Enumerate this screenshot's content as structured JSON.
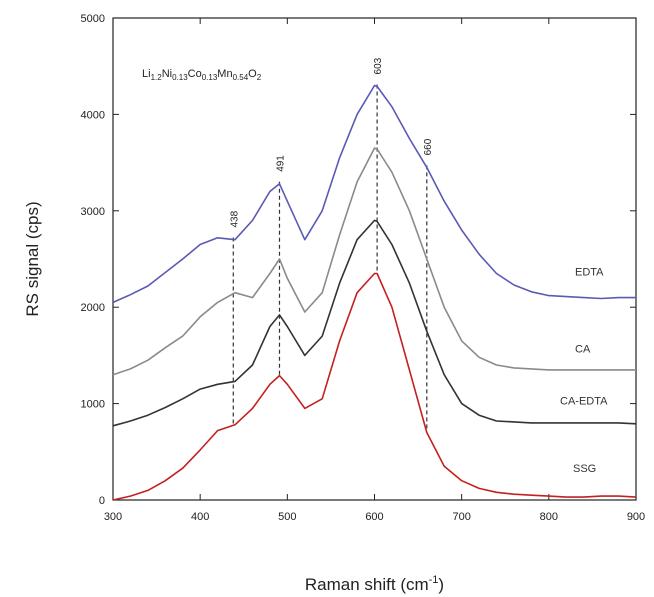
{
  "chart_data": {
    "type": "line",
    "xlabel": "Raman shift (cm",
    "xlabel_sup": "-1",
    "xlabel_end": ")",
    "ylabel": "RS signal (cps)",
    "xlim": [
      300,
      900
    ],
    "ylim": [
      0,
      5000
    ],
    "xticks": [
      300,
      400,
      500,
      600,
      700,
      800,
      900
    ],
    "yticks": [
      0,
      1000,
      2000,
      3000,
      4000,
      5000
    ],
    "formula": "Li1.2Ni0.13Co0.13Mn0.54O2",
    "formula_parts": [
      "Li",
      "1.2",
      "Ni",
      "0.13",
      "Co",
      "0.13",
      "Mn",
      "0.54",
      "O",
      "2"
    ],
    "peak_markers": [
      {
        "label": "438",
        "x": 438
      },
      {
        "label": "491",
        "x": 491
      },
      {
        "label": "603",
        "x": 603
      },
      {
        "label": "660",
        "x": 660
      }
    ],
    "series": [
      {
        "name": "EDTA",
        "color": "#5a5ab5",
        "x": [
          300,
          320,
          340,
          360,
          380,
          400,
          420,
          440,
          460,
          480,
          491,
          500,
          520,
          540,
          560,
          580,
          600,
          603,
          620,
          640,
          660,
          680,
          700,
          720,
          740,
          760,
          780,
          800,
          820,
          840,
          860,
          880,
          900
        ],
        "y": [
          2050,
          2130,
          2220,
          2360,
          2500,
          2650,
          2720,
          2700,
          2900,
          3200,
          3280,
          3100,
          2700,
          3000,
          3550,
          4000,
          4300,
          4290,
          4080,
          3750,
          3450,
          3100,
          2800,
          2550,
          2350,
          2230,
          2160,
          2120,
          2110,
          2100,
          2090,
          2100,
          2100
        ]
      },
      {
        "name": "CA",
        "color": "#8a8a8a",
        "x": [
          300,
          320,
          340,
          360,
          380,
          400,
          420,
          440,
          460,
          480,
          491,
          500,
          520,
          540,
          560,
          580,
          600,
          603,
          620,
          640,
          660,
          680,
          700,
          720,
          740,
          760,
          780,
          800,
          820,
          840,
          860,
          880,
          900
        ],
        "y": [
          1300,
          1360,
          1450,
          1580,
          1700,
          1900,
          2050,
          2150,
          2100,
          2350,
          2500,
          2300,
          1950,
          2150,
          2750,
          3300,
          3650,
          3640,
          3400,
          3000,
          2500,
          2000,
          1650,
          1480,
          1400,
          1370,
          1360,
          1350,
          1350,
          1350,
          1350,
          1350,
          1350
        ]
      },
      {
        "name": "CA-EDTA",
        "color": "#333333",
        "x": [
          300,
          320,
          340,
          360,
          380,
          400,
          420,
          440,
          460,
          480,
          491,
          500,
          520,
          540,
          560,
          580,
          600,
          603,
          620,
          640,
          660,
          680,
          700,
          720,
          740,
          760,
          780,
          800,
          820,
          840,
          860,
          880,
          900
        ],
        "y": [
          770,
          820,
          880,
          960,
          1050,
          1150,
          1200,
          1230,
          1400,
          1800,
          1920,
          1800,
          1500,
          1700,
          2250,
          2700,
          2900,
          2890,
          2650,
          2250,
          1750,
          1300,
          1000,
          880,
          820,
          810,
          800,
          800,
          800,
          800,
          800,
          800,
          790
        ]
      },
      {
        "name": "SSG",
        "color": "#c42020",
        "x": [
          300,
          320,
          340,
          360,
          380,
          400,
          420,
          440,
          460,
          480,
          491,
          500,
          520,
          540,
          560,
          580,
          600,
          603,
          620,
          640,
          660,
          680,
          700,
          720,
          740,
          760,
          780,
          800,
          820,
          840,
          860,
          880,
          900
        ],
        "y": [
          0,
          40,
          100,
          200,
          330,
          520,
          720,
          780,
          950,
          1200,
          1290,
          1200,
          950,
          1050,
          1650,
          2150,
          2350,
          2350,
          2000,
          1350,
          700,
          350,
          200,
          120,
          80,
          60,
          50,
          40,
          30,
          30,
          40,
          40,
          30
        ]
      }
    ]
  }
}
